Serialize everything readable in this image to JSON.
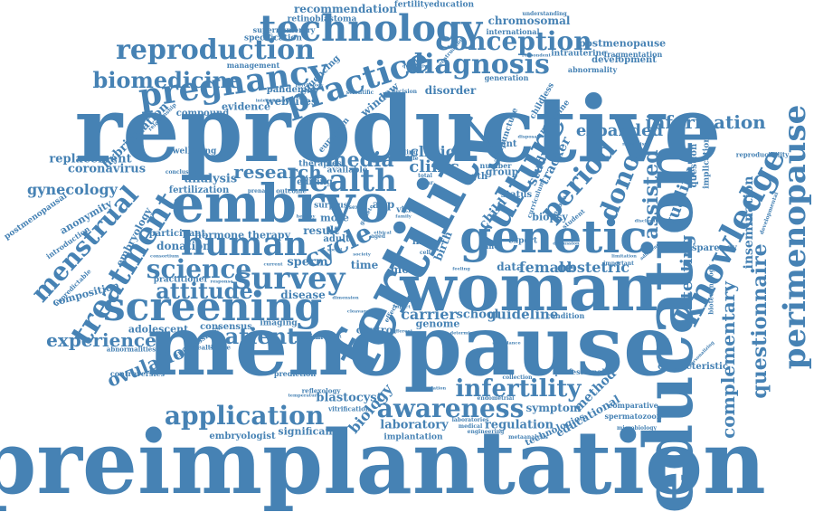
{
  "accent_color": "#4682b4",
  "words": {
    "preimplantation": "preimplantation",
    "menopause": "menopause",
    "reproductive": "reproductive",
    "fertility": "fertility",
    "education": "education",
    "woman": "woman",
    "embryo": "embryo",
    "genetic": "genetic",
    "perimenopause": "perimenopause",
    "screening": "screening",
    "technology": "technology",
    "pregnancy": "pregnancy",
    "reproduction": "reproduction",
    "biomedicine": "biomedicine",
    "practice": "practice",
    "diagnosis": "diagnosis",
    "conception": "conception",
    "culture": "culture",
    "human": "human",
    "cycle": "cycle",
    "health": "health",
    "science": "science",
    "survey": "survey",
    "treatment": "treatment",
    "menstrual": "menstrual",
    "attitude": "attitude",
    "patient": "patient",
    "experience": "experience",
    "ovulation": "ovulation",
    "application": "application",
    "awareness": "awareness",
    "infertility": "infertility",
    "knowledge": "knowledge",
    "information": "information",
    "period": "period",
    "donor": "donor",
    "assisted": "assisted",
    "quality": "quality",
    "testing": "testing",
    "complementary": "complementary",
    "questionnaire": "questionnaire",
    "research": "research",
    "media": "media",
    "clinic": "clinic",
    "clinical": "clinical",
    "expanded": "expanded",
    "insemination": "insemination",
    "female": "female",
    "obstetric": "obstetric",
    "carrier": "carrier",
    "school": "school",
    "guideline": "guideline",
    "gynecology": "gynecology",
    "replacement": "replacement",
    "coronavirus": "coronavirus",
    "hybridization": "hybridization",
    "analysis": "analysis",
    "fertilization": "fertilization",
    "embryology": "embryology",
    "anonymity": "anonymity",
    "postmenopausal": "postmenopausal",
    "donation": "donation",
    "hormone_therapy": "hormone therapy",
    "participant": "participant",
    "practitioner": "practitioner",
    "composition": "composition",
    "adolescent": "adolescent",
    "consensus": "consensus",
    "imaging": "imaging",
    "disease": "disease",
    "sperm": "sperm",
    "time": "time",
    "most": "most",
    "result": "result",
    "adult": "adult",
    "more": "more",
    "biology": "biology",
    "blastocyst": "blastocyst",
    "laboratory": "laboratory",
    "implantation": "implantation",
    "regulation": "regulation",
    "symptom": "symptom",
    "method": "method",
    "educational": "educational",
    "technologies": "technologies",
    "embryologist": "embryologist",
    "significant": "significant",
    "controversies": "controversies",
    "prediction": "prediction",
    "vitrification": "vitrification",
    "reflexology": "reflexology",
    "control": "control",
    "genome": "genome",
    "condition": "condition",
    "biopsy": "biopsy",
    "development": "development",
    "postmenopause": "postmenopause",
    "fragmentation": "fragmentation",
    "intrauterine": "intrauterine",
    "abnormality": "abnormality",
    "recommendation": "recommendation",
    "fertilityeducation": "fertilityeducation",
    "retinoblastoma": "retinoblastoma",
    "chromosomal": "chromosomal",
    "international": "international",
    "understanding": "understanding",
    "supernumerary": "supernumerary",
    "specification": "specification",
    "management": "management",
    "sequencing": "sequencing",
    "pandemic": "pandemic",
    "websites": "websites",
    "evidence": "evidence",
    "compound": "compound",
    "wellbeing": "wellbeing",
    "window": "window",
    "disorder": "disorder",
    "length": "length",
    "group": "group",
    "status": "status",
    "child": "child",
    "study": "study",
    "tracker": "tracker",
    "data": "data",
    "expert": "expert",
    "panel": "panel",
    "birth": "birth",
    "life": "life",
    "vitro": "vitro",
    "app": "app",
    "editing": "editing",
    "available": "available",
    "therapies": "therapies",
    "surplus": "surplus",
    "characteristic": "characteristic",
    "professional": "professional",
    "comparative": "comparative",
    "spermatozoon": "spermatozoon",
    "transparency": "transparency",
    "reproducibility": "reproducibility",
    "biotechnology": "biotechnology",
    "implication": "implication",
    "question": "question",
    "medicine": "medicine",
    "european": "european",
    "acupuncture": "acupuncture",
    "childless": "childless",
    "healthcare": "healthcare",
    "abnormalities": "abnormalities",
    "childlessness": "childlessness",
    "adjunct": "adjunct",
    "introduction": "introduction",
    "unpredictable": "unpredictable",
    "outcome": "outcome",
    "conclusion": "conclusion",
    "prenatal": "prenatal",
    "parent": "parent",
    "number": "number",
    "generation": "generation",
    "scientific": "scientific",
    "decision": "decision",
    "relationship": "relationship",
    "menstruation": "menstruation",
    "intervention": "intervention",
    "psychology": "psychology",
    "qualitative": "qualitative",
    "respondent": "respondent",
    "social": "social",
    "society": "society",
    "ethical": "ethical",
    "finding": "finding",
    "total": "total",
    "year": "year",
    "middle": "middle",
    "medical": "medical",
    "engineering": "engineering",
    "laboratories": "laboratories",
    "collection": "collection",
    "endometrial": "endometrial",
    "microbiology": "microbiology",
    "metaanalysis": "metaanalysis",
    "temperature": "temperature",
    "healthy": "healthy",
    "disposal": "disposal",
    "mosaicism": "mosaicism",
    "student": "student",
    "mobile": "mobile",
    "curriculum": "curriculum",
    "important": "important",
    "adherence": "adherence",
    "discussion": "discussion",
    "limitation": "limitation",
    "population": "population",
    "impact": "impact",
    "effect": "effect",
    "feeling": "feeling",
    "young": "young",
    "cell": "cell",
    "family": "family",
    "sex": "sex",
    "aged": "aged",
    "current": "current",
    "response": "response",
    "consortium": "consortium",
    "gamete": "gamete",
    "dimension": "dimension",
    "personalizing": "personalizing",
    "developmental": "developmental",
    "determine": "determine",
    "different": "different",
    "attendance": "attendance",
    "proficient": "proficient",
    "cleavage": "cleavage",
    "disclosure": "disclosure"
  }
}
